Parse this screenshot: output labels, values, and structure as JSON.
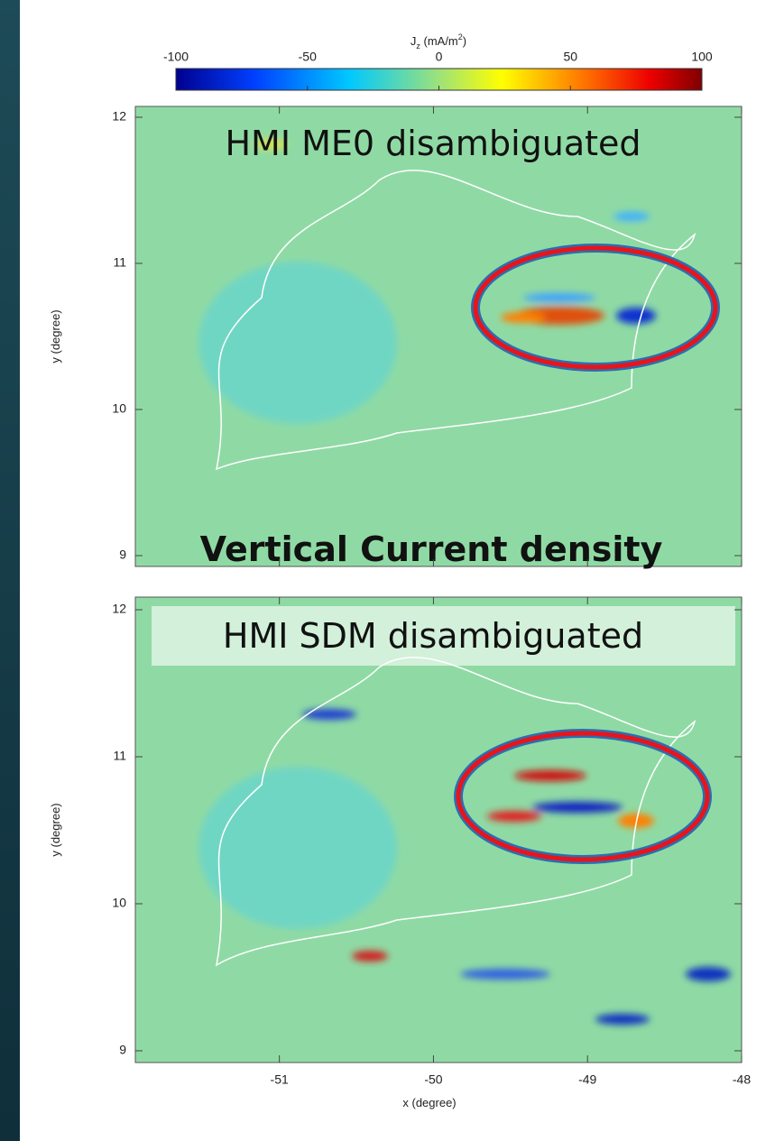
{
  "colorbar": {
    "label": {
      "symbol": "J",
      "subscript": "z",
      "unit": "(mA/m",
      "superscript": "2",
      "unit_end": ")"
    },
    "lim": [
      -100,
      100
    ],
    "ticks": [
      -100,
      -50,
      0,
      50,
      100
    ]
  },
  "x_axis": {
    "label": "x (degree)",
    "xlim": [
      -51.935,
      -48
    ],
    "xticks": [
      -51,
      -50,
      -49,
      -48
    ]
  },
  "panels": [
    {
      "title": "HMI  ME0 disambiguated",
      "caption": "Vertical Current density",
      "y_label": "y (degree)",
      "ylim": [
        8.926,
        12.074
      ],
      "yticks": [
        9,
        10,
        11,
        12
      ]
    },
    {
      "title": "HMI  SDM disambiguated",
      "y_label": "y (degree)",
      "ylim": [
        8.92,
        12.086
      ],
      "yticks": [
        9,
        10,
        11,
        12
      ]
    }
  ]
}
